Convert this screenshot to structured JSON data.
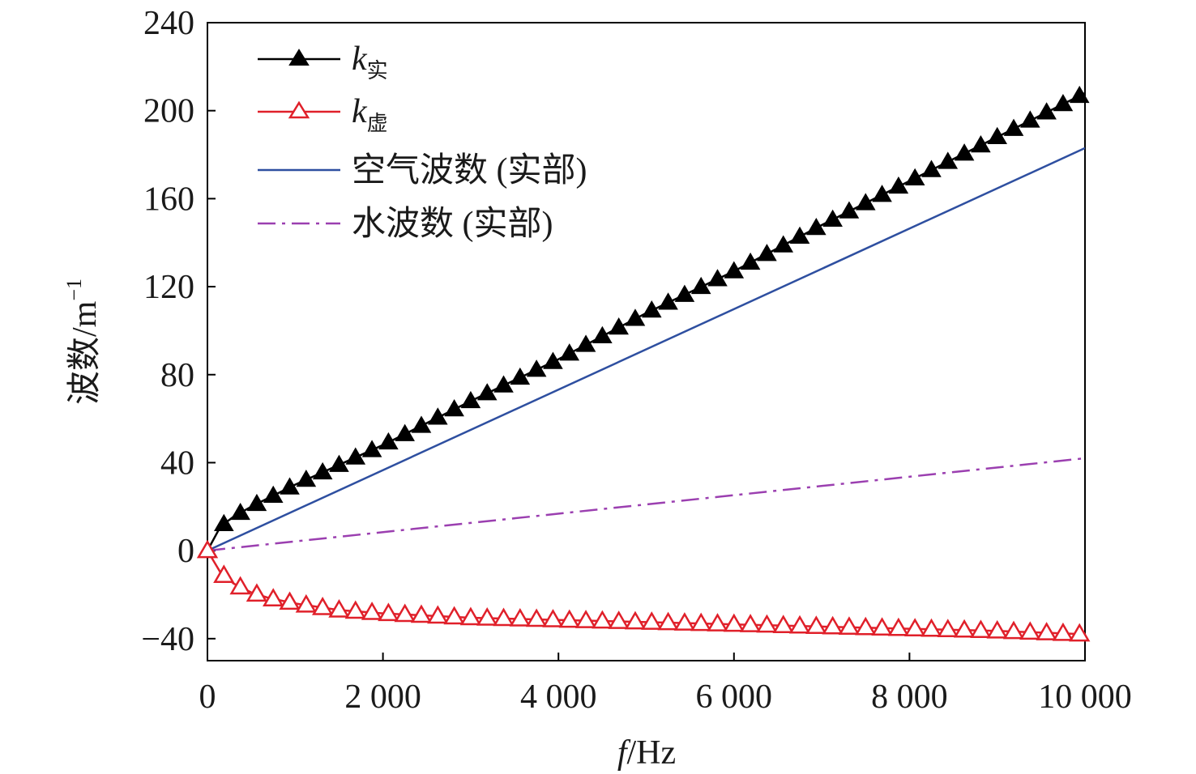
{
  "chart_data": {
    "type": "line",
    "xlabel_italic": "f",
    "xlabel_rest": "/Hz",
    "ylabel_main": "波数/m",
    "ylabel_sup": "−1",
    "xlim": [
      0,
      10000
    ],
    "ylim": [
      -50,
      240
    ],
    "x_ticks": [
      0,
      2000,
      4000,
      6000,
      8000,
      10000
    ],
    "x_tick_labels": [
      "0",
      "2 000",
      "4 000",
      "6 000",
      "8 000",
      "10 000"
    ],
    "y_ticks": [
      -40,
      0,
      40,
      80,
      120,
      160,
      200,
      240
    ],
    "y_tick_labels": [
      "−40",
      "0",
      "40",
      "80",
      "120",
      "160",
      "200",
      "240"
    ],
    "grid": false,
    "legend_position": "top-left",
    "series": [
      {
        "name_main": "k",
        "name_sub": "实",
        "color": "#000000",
        "marker": "filled-triangle",
        "line_style": "solid",
        "x": [
          0,
          150,
          300,
          500,
          700,
          1000,
          1500,
          2000,
          3000,
          4000,
          5000,
          6000,
          7000,
          8000,
          9000,
          10000
        ],
        "y": [
          0,
          11,
          15.5,
          20,
          24,
          30,
          39,
          48,
          68,
          87,
          108,
          127,
          148,
          168,
          188,
          208
        ]
      },
      {
        "name_main": "k",
        "name_sub": "虚",
        "color": "#e0202a",
        "marker": "open-triangle",
        "line_style": "solid",
        "x": [
          0,
          150,
          300,
          500,
          700,
          1000,
          1500,
          2000,
          3000,
          4000,
          5000,
          6000,
          7000,
          8000,
          9000,
          10000
        ],
        "y": [
          0,
          -10,
          -15,
          -19,
          -21.5,
          -24,
          -27,
          -28.5,
          -30.5,
          -31.5,
          -32.5,
          -33.5,
          -34.5,
          -35.5,
          -36.5,
          -38
        ]
      },
      {
        "name": "空气波数 (实部)",
        "color": "#2e4fa0",
        "marker": "none",
        "line_style": "solid",
        "x": [
          0,
          10000
        ],
        "y": [
          0,
          183
        ]
      },
      {
        "name": "水波数 (实部)",
        "color": "#9b3fb0",
        "marker": "none",
        "line_style": "dash-dot",
        "x": [
          0,
          10000
        ],
        "y": [
          0,
          42
        ]
      }
    ]
  }
}
